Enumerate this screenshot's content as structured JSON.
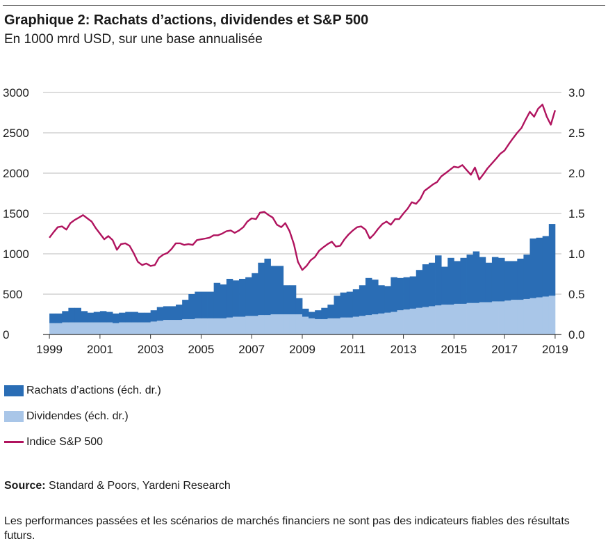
{
  "header": {
    "title": "Graphique 2: Rachats d’actions, dividendes et S&P 500",
    "subtitle": "En 1000 mrd USD, sur une base annualisée"
  },
  "colors": {
    "buybacks": "#2a6db5",
    "dividends": "#a9c6e8",
    "sp500": "#b0135e",
    "gridline": "#bbbbbb",
    "text": "#1a1a1a"
  },
  "legend": {
    "buybacks_label": "Rachats d’actions (éch. dr.)",
    "dividends_label": "Dividendes (éch. dr.)",
    "sp500_label": "Indice S&P 500"
  },
  "source": {
    "prefix": "Source:",
    "text": " Standard & Poors, Yardeni Research"
  },
  "disclaimer": "Les performances passées et les scénarios de marchés financiers ne sont pas des indicateurs fiables des résultats futurs.",
  "chart_data": {
    "type": "bar",
    "stacked": true,
    "grid": true,
    "legend_position": "bottom-left",
    "x_range": [
      1998.75,
      2019.25
    ],
    "x_tick_labels": [
      "1999",
      "2001",
      "2003",
      "2005",
      "2007",
      "2009",
      "2011",
      "2013",
      "2015",
      "2017",
      "2019"
    ],
    "x_tick_values": [
      1999,
      2001,
      2003,
      2005,
      2007,
      2009,
      2011,
      2013,
      2015,
      2017,
      2019
    ],
    "y_left": {
      "range": [
        0,
        3000
      ],
      "ticks": [
        "0",
        "500",
        "1000",
        "1500",
        "2000",
        "2500",
        "3000"
      ]
    },
    "y_right": {
      "range": [
        0,
        3
      ],
      "ticks": [
        "0.0",
        "0.5",
        "1.0",
        "1.5",
        "2.0",
        "2.5",
        "3.0"
      ]
    },
    "bar_series": [
      {
        "name": "Rachats d’actions (éch. dr.)",
        "axis": "right",
        "stack_on": "Dividendes (éch. dr.)"
      },
      {
        "name": "Dividendes (éch. dr.)",
        "axis": "right"
      }
    ],
    "quarters": [
      "1999Q1",
      "1999Q2",
      "1999Q3",
      "1999Q4",
      "2000Q1",
      "2000Q2",
      "2000Q3",
      "2000Q4",
      "2001Q1",
      "2001Q2",
      "2001Q3",
      "2001Q4",
      "2002Q1",
      "2002Q2",
      "2002Q3",
      "2002Q4",
      "2003Q1",
      "2003Q2",
      "2003Q3",
      "2003Q4",
      "2004Q1",
      "2004Q2",
      "2004Q3",
      "2004Q4",
      "2005Q1",
      "2005Q2",
      "2005Q3",
      "2005Q4",
      "2006Q1",
      "2006Q2",
      "2006Q3",
      "2006Q4",
      "2007Q1",
      "2007Q2",
      "2007Q3",
      "2007Q4",
      "2008Q1",
      "2008Q2",
      "2008Q3",
      "2008Q4",
      "2009Q1",
      "2009Q2",
      "2009Q3",
      "2009Q4",
      "2010Q1",
      "2010Q2",
      "2010Q3",
      "2010Q4",
      "2011Q1",
      "2011Q2",
      "2011Q3",
      "2011Q4",
      "2012Q1",
      "2012Q2",
      "2012Q3",
      "2012Q4",
      "2013Q1",
      "2013Q2",
      "2013Q3",
      "2013Q4",
      "2014Q1",
      "2014Q2",
      "2014Q3",
      "2014Q4",
      "2015Q1",
      "2015Q2",
      "2015Q3",
      "2015Q4",
      "2016Q1",
      "2016Q2",
      "2016Q3",
      "2016Q4",
      "2017Q1",
      "2017Q2",
      "2017Q3",
      "2017Q4",
      "2018Q1",
      "2018Q2",
      "2018Q3",
      "2018Q4"
    ],
    "dividends": [
      0.14,
      0.14,
      0.15,
      0.15,
      0.15,
      0.15,
      0.15,
      0.15,
      0.15,
      0.15,
      0.14,
      0.15,
      0.15,
      0.15,
      0.15,
      0.15,
      0.16,
      0.17,
      0.18,
      0.18,
      0.18,
      0.19,
      0.19,
      0.2,
      0.2,
      0.2,
      0.2,
      0.2,
      0.21,
      0.22,
      0.22,
      0.23,
      0.23,
      0.24,
      0.24,
      0.25,
      0.25,
      0.25,
      0.25,
      0.25,
      0.22,
      0.2,
      0.19,
      0.19,
      0.2,
      0.2,
      0.21,
      0.21,
      0.22,
      0.23,
      0.24,
      0.25,
      0.26,
      0.27,
      0.28,
      0.3,
      0.31,
      0.32,
      0.33,
      0.34,
      0.35,
      0.36,
      0.37,
      0.37,
      0.38,
      0.38,
      0.39,
      0.39,
      0.4,
      0.4,
      0.41,
      0.41,
      0.42,
      0.43,
      0.43,
      0.44,
      0.45,
      0.46,
      0.47,
      0.48
    ],
    "buybacks": [
      0.12,
      0.12,
      0.14,
      0.18,
      0.18,
      0.14,
      0.12,
      0.13,
      0.14,
      0.13,
      0.12,
      0.12,
      0.13,
      0.13,
      0.12,
      0.12,
      0.14,
      0.17,
      0.17,
      0.17,
      0.19,
      0.24,
      0.31,
      0.33,
      0.33,
      0.33,
      0.44,
      0.42,
      0.48,
      0.45,
      0.47,
      0.48,
      0.53,
      0.65,
      0.7,
      0.6,
      0.6,
      0.36,
      0.36,
      0.2,
      0.1,
      0.08,
      0.11,
      0.14,
      0.17,
      0.28,
      0.31,
      0.32,
      0.34,
      0.38,
      0.46,
      0.43,
      0.35,
      0.33,
      0.43,
      0.4,
      0.4,
      0.4,
      0.47,
      0.53,
      0.54,
      0.62,
      0.47,
      0.58,
      0.53,
      0.57,
      0.6,
      0.64,
      0.56,
      0.49,
      0.55,
      0.54,
      0.49,
      0.48,
      0.51,
      0.55,
      0.74,
      0.74,
      0.75,
      0.89
    ],
    "line_series": {
      "name": "Indice S&P 500",
      "axis": "left",
      "x": [
        1999.0,
        1999.17,
        1999.33,
        1999.5,
        1999.67,
        1999.83,
        2000.0,
        2000.17,
        2000.33,
        2000.5,
        2000.67,
        2000.83,
        2001.0,
        2001.17,
        2001.33,
        2001.5,
        2001.67,
        2001.83,
        2002.0,
        2002.17,
        2002.33,
        2002.5,
        2002.67,
        2002.83,
        2003.0,
        2003.17,
        2003.33,
        2003.5,
        2003.67,
        2003.83,
        2004.0,
        2004.17,
        2004.33,
        2004.5,
        2004.67,
        2004.83,
        2005.0,
        2005.17,
        2005.33,
        2005.5,
        2005.67,
        2005.83,
        2006.0,
        2006.17,
        2006.33,
        2006.5,
        2006.67,
        2006.83,
        2007.0,
        2007.17,
        2007.33,
        2007.5,
        2007.67,
        2007.83,
        2008.0,
        2008.17,
        2008.33,
        2008.5,
        2008.67,
        2008.83,
        2009.0,
        2009.17,
        2009.33,
        2009.5,
        2009.67,
        2009.83,
        2010.0,
        2010.17,
        2010.33,
        2010.5,
        2010.67,
        2010.83,
        2011.0,
        2011.17,
        2011.33,
        2011.5,
        2011.67,
        2011.83,
        2012.0,
        2012.17,
        2012.33,
        2012.5,
        2012.67,
        2012.83,
        2013.0,
        2013.17,
        2013.33,
        2013.5,
        2013.67,
        2013.83,
        2014.0,
        2014.17,
        2014.33,
        2014.5,
        2014.67,
        2014.83,
        2015.0,
        2015.17,
        2015.33,
        2015.5,
        2015.67,
        2015.83,
        2016.0,
        2016.17,
        2016.33,
        2016.5,
        2016.67,
        2016.83,
        2017.0,
        2017.17,
        2017.33,
        2017.5,
        2017.67,
        2017.83,
        2018.0,
        2018.17,
        2018.33,
        2018.5,
        2018.67,
        2018.83,
        2019.0
      ],
      "y": [
        1200,
        1270,
        1330,
        1340,
        1300,
        1380,
        1420,
        1450,
        1480,
        1440,
        1400,
        1320,
        1250,
        1180,
        1220,
        1170,
        1050,
        1120,
        1130,
        1100,
        1010,
        900,
        860,
        880,
        850,
        860,
        950,
        990,
        1010,
        1060,
        1130,
        1130,
        1110,
        1120,
        1110,
        1170,
        1180,
        1190,
        1200,
        1230,
        1230,
        1250,
        1280,
        1290,
        1260,
        1290,
        1330,
        1400,
        1440,
        1430,
        1510,
        1520,
        1480,
        1450,
        1360,
        1330,
        1380,
        1280,
        1120,
        900,
        800,
        850,
        920,
        960,
        1040,
        1080,
        1120,
        1150,
        1090,
        1100,
        1180,
        1240,
        1290,
        1330,
        1340,
        1300,
        1190,
        1240,
        1310,
        1370,
        1400,
        1360,
        1430,
        1430,
        1500,
        1560,
        1640,
        1620,
        1680,
        1780,
        1820,
        1860,
        1890,
        1960,
        2000,
        2040,
        2080,
        2070,
        2100,
        2040,
        1980,
        2070,
        1920,
        1990,
        2060,
        2120,
        2180,
        2240,
        2280,
        2360,
        2430,
        2500,
        2560,
        2660,
        2760,
        2700,
        2800,
        2850,
        2700,
        2600,
        2780
      ]
    }
  }
}
